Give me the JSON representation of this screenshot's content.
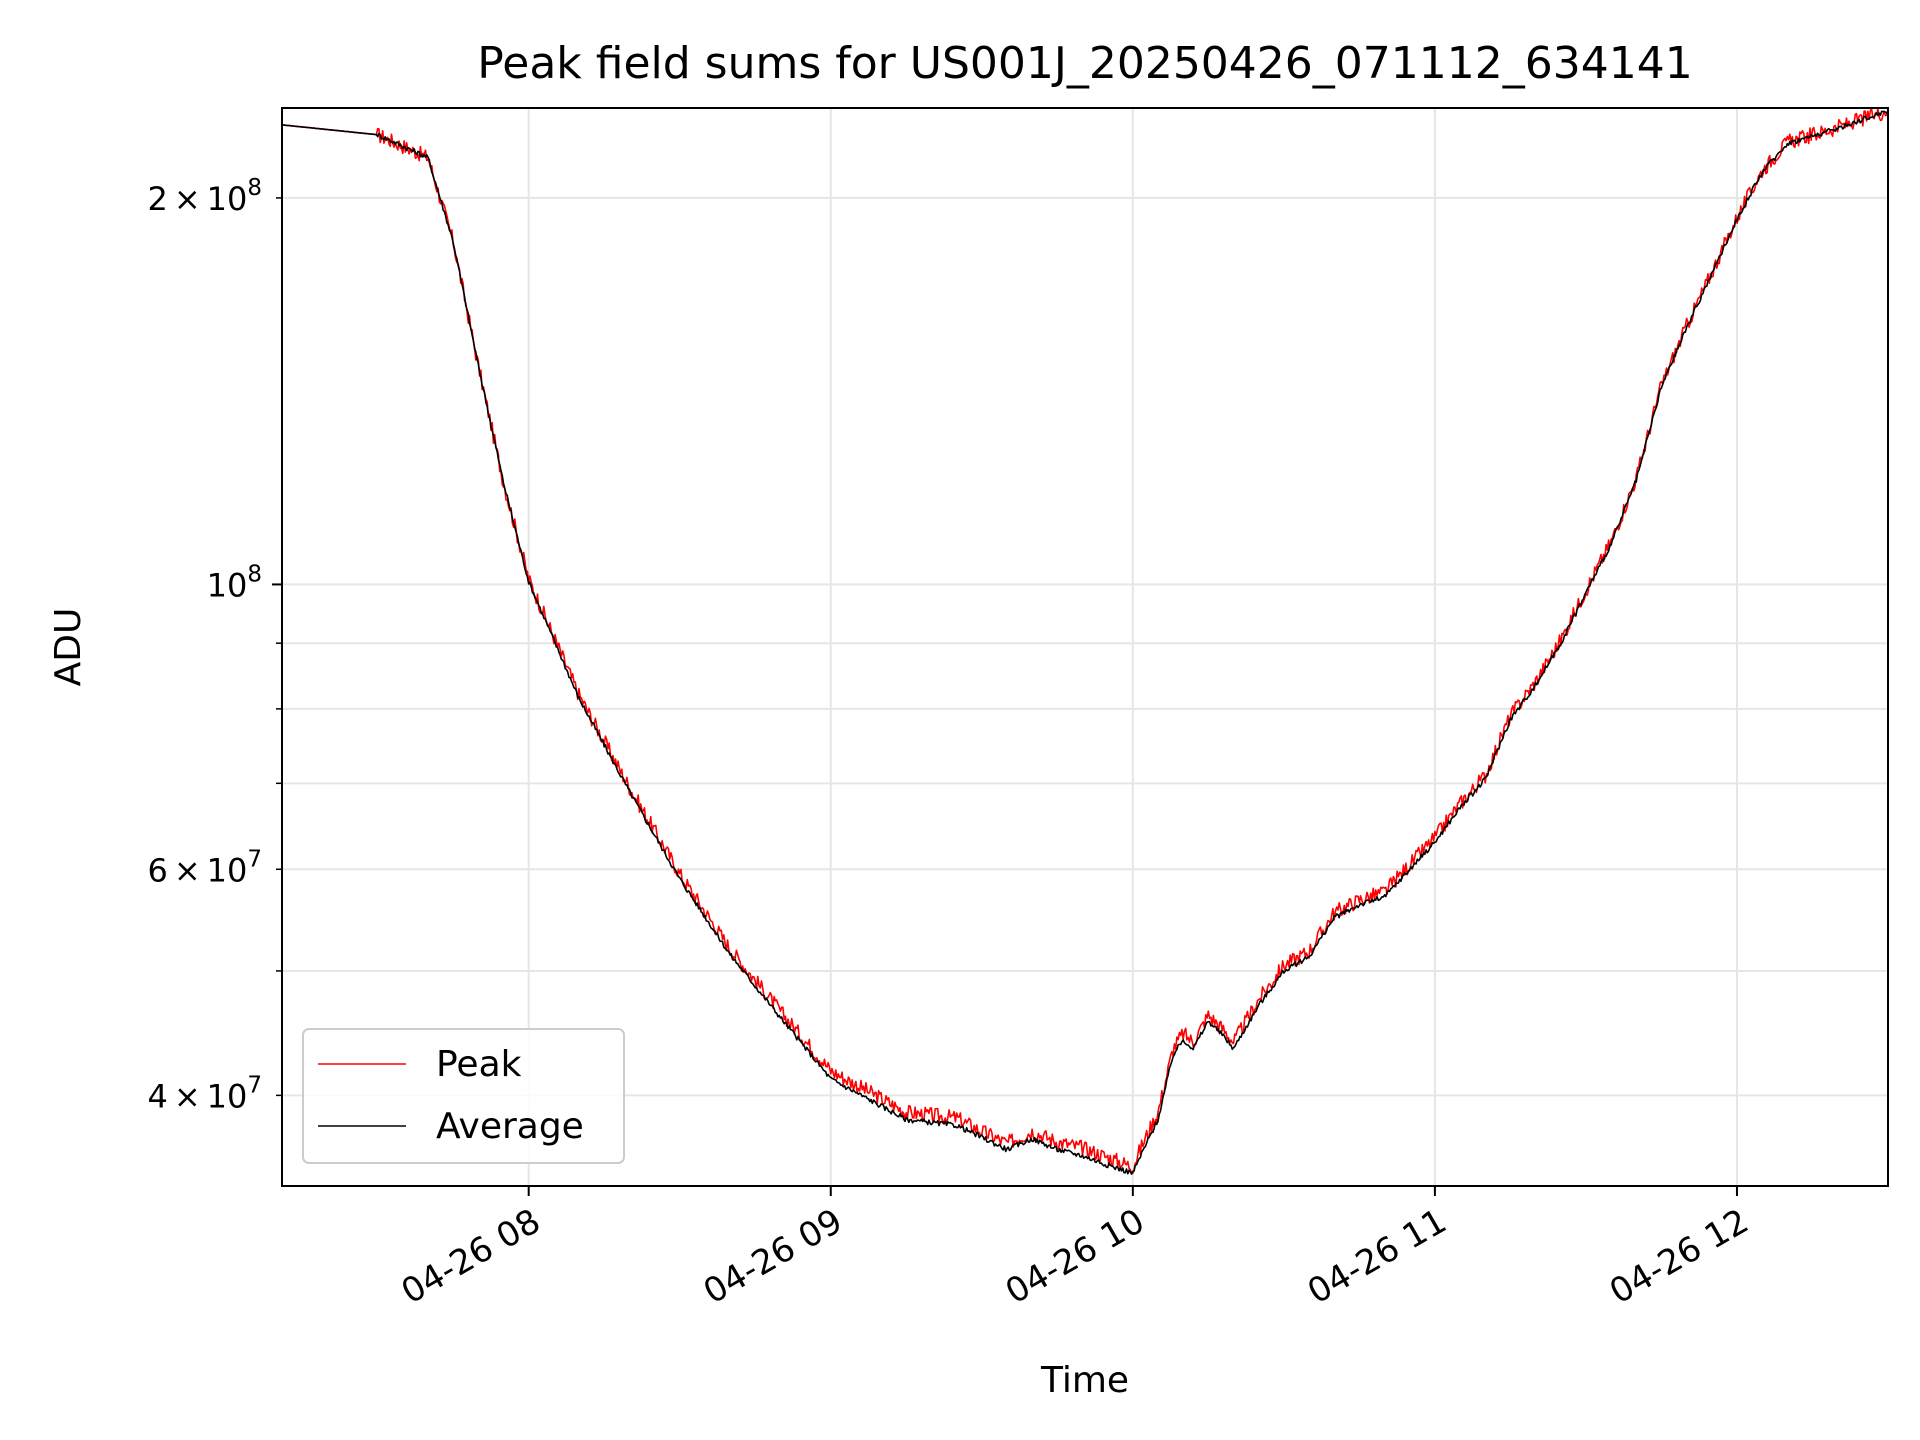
{
  "chart_data": {
    "type": "line",
    "title": "Peak field sums for US001J_20250426_071112_634141",
    "xlabel": "Time",
    "ylabel": "ADU",
    "xscale": "time",
    "yscale": "log",
    "xlim": [
      "2025-04-26 07:11",
      "2025-04-26 12:30"
    ],
    "ylim": [
      34000000,
      235000000
    ],
    "x_ticks": [
      {
        "value": "2025-04-26 08:00",
        "label": "04-26 08"
      },
      {
        "value": "2025-04-26 09:00",
        "label": "04-26 09"
      },
      {
        "value": "2025-04-26 10:00",
        "label": "04-26 10"
      },
      {
        "value": "2025-04-26 11:00",
        "label": "04-26 11"
      },
      {
        "value": "2025-04-26 12:00",
        "label": "04-26 12"
      }
    ],
    "y_major_ticks": [
      {
        "value": 100000000,
        "mantissa": "",
        "exp": "8"
      }
    ],
    "y_minor_ticks": [
      {
        "value": 40000000,
        "mantissa": "4",
        "exp": "7"
      },
      {
        "value": 50000000,
        "mantissa": "",
        "exp": ""
      },
      {
        "value": 60000000,
        "mantissa": "6",
        "exp": "7"
      },
      {
        "value": 70000000,
        "mantissa": "",
        "exp": ""
      },
      {
        "value": 80000000,
        "mantissa": "",
        "exp": ""
      },
      {
        "value": 90000000,
        "mantissa": "",
        "exp": ""
      },
      {
        "value": 200000000,
        "mantissa": "2",
        "exp": "8"
      }
    ],
    "grid": true,
    "legend_position": "lower-left",
    "series": [
      {
        "name": "Peak",
        "color": "#ff0000",
        "noise_amplitude": 0.012,
        "x": [
          "2025-04-26 07:11",
          "2025-04-26 07:30",
          "2025-04-26 07:40",
          "2025-04-26 07:45",
          "2025-04-26 07:50",
          "2025-04-26 07:55",
          "2025-04-26 08:00",
          "2025-04-26 08:10",
          "2025-04-26 08:20",
          "2025-04-26 08:30",
          "2025-04-26 08:40",
          "2025-04-26 08:50",
          "2025-04-26 09:00",
          "2025-04-26 09:15",
          "2025-04-26 09:25",
          "2025-04-26 09:30",
          "2025-04-26 09:35",
          "2025-04-26 09:40",
          "2025-04-26 09:45",
          "2025-04-26 09:50",
          "2025-04-26 09:55",
          "2025-04-26 10:00",
          "2025-04-26 10:02",
          "2025-04-26 10:05",
          "2025-04-26 10:08",
          "2025-04-26 10:10",
          "2025-04-26 10:12",
          "2025-04-26 10:15",
          "2025-04-26 10:18",
          "2025-04-26 10:20",
          "2025-04-26 10:25",
          "2025-04-26 10:30",
          "2025-04-26 10:35",
          "2025-04-26 10:40",
          "2025-04-26 10:45",
          "2025-04-26 10:50",
          "2025-04-26 10:55",
          "2025-04-26 11:00",
          "2025-04-26 11:05",
          "2025-04-26 11:10",
          "2025-04-26 11:15",
          "2025-04-26 11:20",
          "2025-04-26 11:25",
          "2025-04-26 11:30",
          "2025-04-26 11:35",
          "2025-04-26 11:40",
          "2025-04-26 11:45",
          "2025-04-26 11:50",
          "2025-04-26 11:55",
          "2025-04-26 12:00",
          "2025-04-26 12:05",
          "2025-04-26 12:10",
          "2025-04-26 12:20",
          "2025-04-26 12:30"
        ],
        "values": [
          228000000,
          224000000,
          215000000,
          185000000,
          148000000,
          120000000,
          101000000,
          82000000,
          69500000,
          59500000,
          52000000,
          46500000,
          41800000,
          38800000,
          38400000,
          37500000,
          36700000,
          37500000,
          36800000,
          36400000,
          35800000,
          35200000,
          36700000,
          38800000,
          43500000,
          44700000,
          44000000,
          46200000,
          45000000,
          44000000,
          47500000,
          50500000,
          51800000,
          55500000,
          56800000,
          57600000,
          60500000,
          63500000,
          67500000,
          71000000,
          79000000,
          84000000,
          90500000,
          99000000,
          108000000,
          121000000,
          143000000,
          159000000,
          175000000,
          193000000,
          210000000,
          221000000,
          227000000,
          234000000
        ]
      },
      {
        "name": "Average",
        "color": "#000000",
        "noise_amplitude": 0.004,
        "x": [
          "2025-04-26 07:11",
          "2025-04-26 07:30",
          "2025-04-26 07:40",
          "2025-04-26 07:45",
          "2025-04-26 07:50",
          "2025-04-26 07:55",
          "2025-04-26 08:00",
          "2025-04-26 08:10",
          "2025-04-26 08:20",
          "2025-04-26 08:30",
          "2025-04-26 08:40",
          "2025-04-26 08:50",
          "2025-04-26 09:00",
          "2025-04-26 09:15",
          "2025-04-26 09:25",
          "2025-04-26 09:30",
          "2025-04-26 09:35",
          "2025-04-26 09:40",
          "2025-04-26 09:45",
          "2025-04-26 09:50",
          "2025-04-26 09:55",
          "2025-04-26 10:00",
          "2025-04-26 10:02",
          "2025-04-26 10:05",
          "2025-04-26 10:08",
          "2025-04-26 10:10",
          "2025-04-26 10:12",
          "2025-04-26 10:15",
          "2025-04-26 10:18",
          "2025-04-26 10:20",
          "2025-04-26 10:25",
          "2025-04-26 10:30",
          "2025-04-26 10:35",
          "2025-04-26 10:40",
          "2025-04-26 10:45",
          "2025-04-26 10:50",
          "2025-04-26 10:55",
          "2025-04-26 11:00",
          "2025-04-26 11:05",
          "2025-04-26 11:10",
          "2025-04-26 11:15",
          "2025-04-26 11:20",
          "2025-04-26 11:25",
          "2025-04-26 11:30",
          "2025-04-26 11:35",
          "2025-04-26 11:40",
          "2025-04-26 11:45",
          "2025-04-26 11:50",
          "2025-04-26 11:55",
          "2025-04-26 12:00",
          "2025-04-26 12:05",
          "2025-04-26 12:10",
          "2025-04-26 12:20",
          "2025-04-26 12:30"
        ],
        "values": [
          228000000,
          224000000,
          215000000,
          185000000,
          148000000,
          120000000,
          100500000,
          81500000,
          69000000,
          59000000,
          51500000,
          46000000,
          41200000,
          38300000,
          37900000,
          37100000,
          36300000,
          37000000,
          36300000,
          35900000,
          35300000,
          34800000,
          36200000,
          38300000,
          43000000,
          44200000,
          43500000,
          45700000,
          44500000,
          43500000,
          47000000,
          50000000,
          51300000,
          55000000,
          56300000,
          57100000,
          60000000,
          63000000,
          67000000,
          70500000,
          78500000,
          83500000,
          90000000,
          98500000,
          107500000,
          120500000,
          142500000,
          158500000,
          174500000,
          192500000,
          209500000,
          220500000,
          226500000,
          234000000
        ]
      }
    ]
  }
}
